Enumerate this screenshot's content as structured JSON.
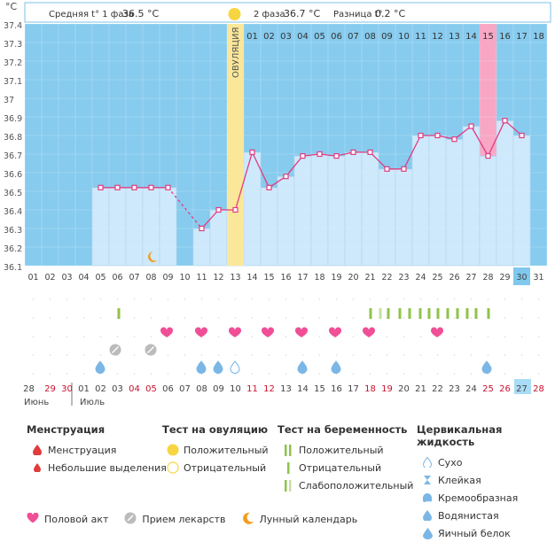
{
  "chart_data": {
    "type": "line",
    "title": "BBT chart",
    "yaxis_label": "°C",
    "ylim": [
      36.1,
      37.4
    ],
    "yticks": [
      "37.4",
      "37.3",
      "37.2",
      "37.1",
      "37",
      "36.9",
      "36.8",
      "36.7",
      "36.6",
      "36.5",
      "36.4",
      "36.3",
      "36.2",
      "36.1"
    ],
    "cycle_days": [
      "01",
      "02",
      "03",
      "04",
      "05",
      "06",
      "07",
      "08",
      "09",
      "10",
      "11",
      "12",
      "13",
      "14",
      "15",
      "16",
      "17",
      "18"
    ],
    "dates_top": [
      "01",
      "02",
      "03",
      "04",
      "05",
      "06",
      "07",
      "08",
      "09",
      "10",
      "11",
      "12",
      "13",
      "14",
      "15",
      "16",
      "17",
      "18",
      "19",
      "20",
      "21",
      "22",
      "23",
      "24",
      "25",
      "26",
      "27",
      "28",
      "29",
      "30",
      "31"
    ],
    "temps": [
      null,
      null,
      null,
      null,
      36.52,
      36.52,
      36.52,
      36.52,
      36.52,
      null,
      36.3,
      36.4,
      36.4,
      36.71,
      36.52,
      36.58,
      36.69,
      36.7,
      36.69,
      36.71,
      36.71,
      36.62,
      36.62,
      36.8,
      36.8,
      36.78,
      36.85,
      36.69,
      36.88,
      36.8
    ],
    "ovulation_day_index": 12,
    "today_date_index": 29,
    "highlighted_cycle_day": "15",
    "header": {
      "phase1_label": "Средняя t° 1 фаза",
      "phase1_value": "36.5 °C",
      "phase2_label": "2 фаза",
      "phase2_value": "36.7 °C",
      "diff_label": "Разница t°",
      "diff_value": "0.2 °C",
      "ovulation_text": "ОВУЛЯЦИЯ"
    },
    "moon_index": 7,
    "mucus_index": [
      4,
      21,
      22,
      23,
      24,
      25,
      26,
      27,
      28,
      29,
      30,
      31,
      32,
      33
    ],
    "sex_index": [
      5,
      7,
      9,
      11,
      13,
      15,
      17,
      24
    ],
    "pill_index": [
      6,
      7
    ],
    "drops_index": [
      3,
      10,
      11,
      12,
      16,
      18,
      27
    ],
    "bottom_dates": [
      "28",
      "29",
      "30",
      "01",
      "02",
      "03",
      "04",
      "05",
      "06",
      "07",
      "08",
      "09",
      "10",
      "11",
      "12",
      "13",
      "14",
      "15",
      "16",
      "17",
      "18",
      "19",
      "20",
      "21",
      "22",
      "23",
      "24",
      "25",
      "26",
      "27",
      "28"
    ],
    "month_labels": [
      "Июнь",
      "Июль"
    ]
  },
  "legend": {
    "menstruation": {
      "title": "Менструация",
      "items": [
        "Менструация",
        "Небольшие выделения"
      ]
    },
    "ovulation_test": {
      "title": "Тест на овуляцию",
      "items": [
        "Положительный",
        "Отрицательный"
      ]
    },
    "pregnancy_test": {
      "title": "Тест на беременность",
      "items": [
        "Положительный",
        "Отрицательный",
        "Слабоположительный"
      ]
    },
    "cervical": {
      "title": "Цервикальная жидкость",
      "items": [
        "Сухо",
        "Клейкая",
        "Кремообразная",
        "Водянистая",
        "Яичный белок"
      ]
    },
    "bottom": [
      "Половой акт",
      "Прием лекарств",
      "Лунный календарь"
    ]
  },
  "colors": {
    "bg_blue": "#87cbee",
    "bar_fill": "#cde9fb",
    "line": "#e03c83",
    "ovulation": "#fae799",
    "mens": "#e23b3b",
    "sex": "#f04e96",
    "mucus": "#8fc34a",
    "drop": "#7ab7e6"
  }
}
